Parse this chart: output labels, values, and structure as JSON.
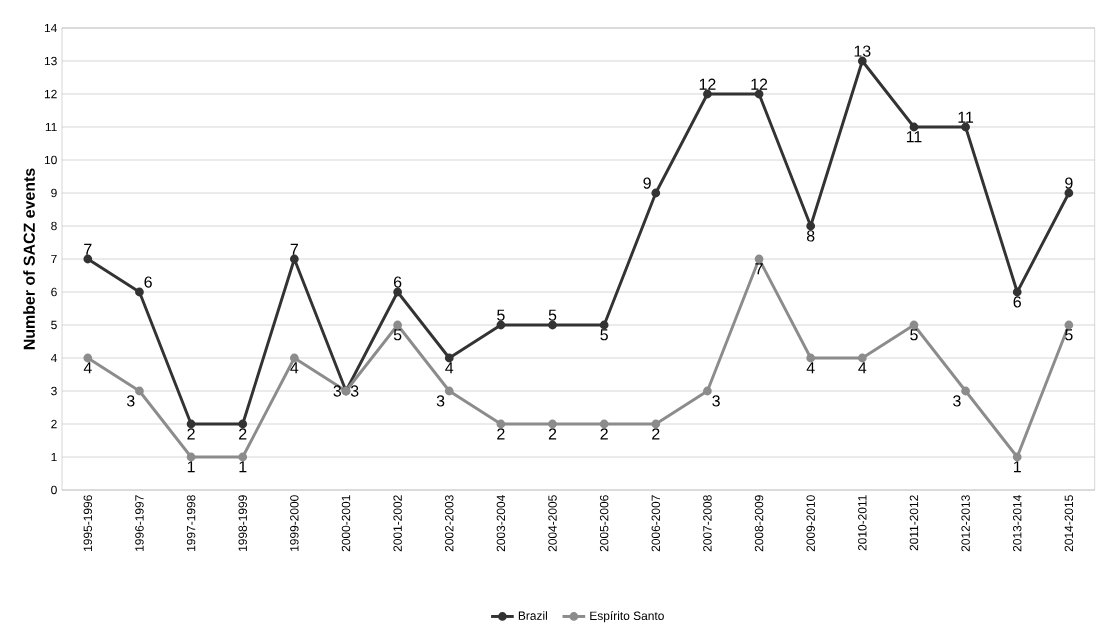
{
  "chart_data": {
    "type": "line",
    "ylabel": "Number of SACZ events",
    "categories": [
      "1995-1996",
      "1996-1997",
      "1997-1998",
      "1998-1999",
      "1999-2000",
      "2000-2001",
      "2001-2002",
      "2002-2003",
      "2003-2004",
      "2004-2005",
      "2005-2006",
      "2006-2007",
      "2007-2008",
      "2008-2009",
      "2009-2010",
      "2010-2011",
      "2011-2012",
      "2012-2013",
      "2013-2014",
      "2014-2015"
    ],
    "series": [
      {
        "name": "Brazil",
        "color": "#333333",
        "values": [
          7,
          6,
          2,
          2,
          7,
          3,
          6,
          4,
          5,
          5,
          5,
          9,
          12,
          12,
          8,
          13,
          11,
          11,
          6,
          9
        ]
      },
      {
        "name": "Espírito Santo",
        "color": "#8c8c8c",
        "values": [
          4,
          3,
          1,
          1,
          4,
          3,
          5,
          3,
          2,
          2,
          2,
          2,
          3,
          7,
          4,
          4,
          5,
          3,
          1,
          5
        ]
      }
    ],
    "ylim": [
      0,
      14
    ],
    "yticks": [
      0,
      1,
      2,
      3,
      4,
      5,
      6,
      7,
      8,
      9,
      10,
      11,
      12,
      13,
      14
    ],
    "grid": "y",
    "legend": "bottom",
    "marker": "circle",
    "line_style": "solid",
    "data_labels": true
  }
}
